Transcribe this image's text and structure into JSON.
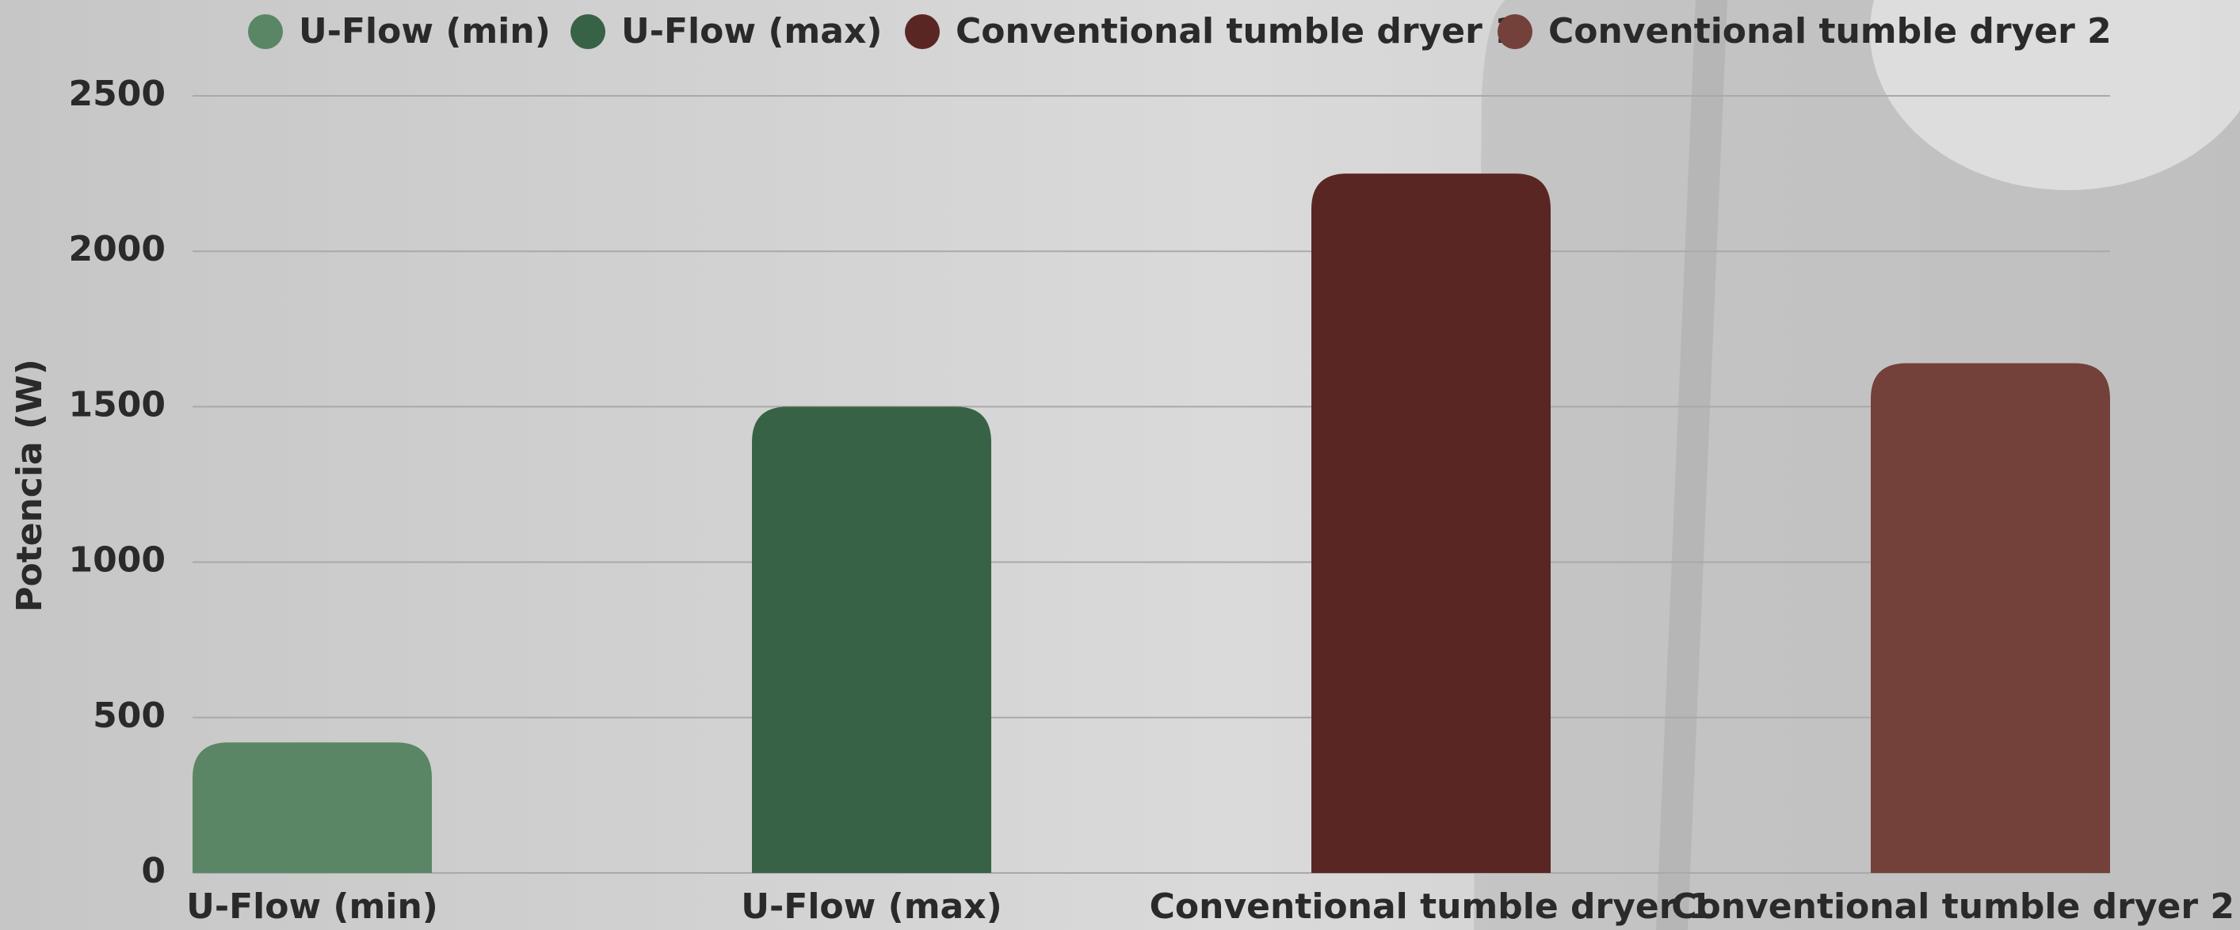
{
  "chart_data": {
    "type": "bar",
    "y_label": "Potencia (W)",
    "categories": [
      "U-Flow (min)",
      "U-Flow (max)",
      "Conventional tumble dryer 1",
      "Conventional tumble dryer 2"
    ],
    "values": [
      420,
      1500,
      2250,
      1640
    ],
    "colors": [
      "#5a8665",
      "#386246",
      "#5a2624",
      "#74403a"
    ],
    "ylim": [
      0,
      2500
    ],
    "yticks": [
      0,
      500,
      1000,
      1500,
      2000,
      2500
    ],
    "grid": true,
    "legend": "top"
  }
}
